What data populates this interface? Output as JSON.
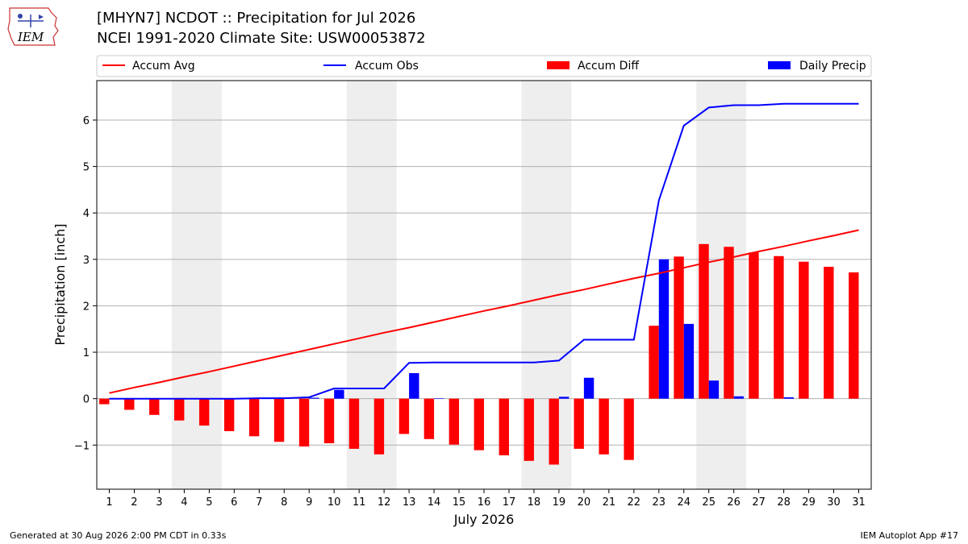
{
  "header": {
    "title_line1": "[MHYN7] NCDOT :: Precipitation for Jul 2026",
    "title_line2": "NCEI 1991-2020 Climate Site: USW00053872",
    "logo_text": "IEM"
  },
  "footer": {
    "generated": "Generated at 30 Aug 2026 2:00 PM CDT in 0.33s",
    "app": "IEM Autoplot App #17"
  },
  "colors": {
    "accum_avg": "#ff0000",
    "accum_obs": "#0000ff",
    "accum_diff": "#ff0000",
    "daily_precip": "#0000ff",
    "weekend": "#eeeeee"
  },
  "chart_data": {
    "type": "bar",
    "xlabel": "July 2026",
    "ylabel": "Precipitation [inch]",
    "ylim": [
      -1.95,
      6.85
    ],
    "yticks": [
      -1,
      0,
      1,
      2,
      3,
      4,
      5,
      6
    ],
    "xlim": [
      0.5,
      31.5
    ],
    "grid": true,
    "legend_placement": "top",
    "weekend_spans": [
      [
        3.5,
        5.5
      ],
      [
        10.5,
        12.5
      ],
      [
        17.5,
        19.5
      ],
      [
        24.5,
        26.5
      ]
    ],
    "days": [
      1,
      2,
      3,
      4,
      5,
      6,
      7,
      8,
      9,
      10,
      11,
      12,
      13,
      14,
      15,
      16,
      17,
      18,
      19,
      20,
      21,
      22,
      23,
      24,
      25,
      26,
      27,
      28,
      29,
      30,
      31
    ],
    "series": [
      {
        "name": "Accum Avg",
        "kind": "line",
        "values": [
          0.12,
          0.24,
          0.35,
          0.47,
          0.58,
          0.7,
          0.82,
          0.94,
          1.06,
          1.18,
          1.3,
          1.42,
          1.53,
          1.65,
          1.77,
          1.89,
          2.0,
          2.12,
          2.24,
          2.35,
          2.47,
          2.59,
          2.7,
          2.82,
          2.94,
          3.05,
          3.17,
          3.28,
          3.4,
          3.51,
          3.63
        ]
      },
      {
        "name": "Accum Obs",
        "kind": "line",
        "values": [
          0.0,
          0.0,
          0.0,
          0.0,
          0.0,
          0.0,
          0.01,
          0.01,
          0.03,
          0.22,
          0.22,
          0.22,
          0.77,
          0.78,
          0.78,
          0.78,
          0.78,
          0.78,
          0.82,
          1.27,
          1.27,
          1.27,
          4.27,
          5.88,
          6.27,
          6.32,
          6.32,
          6.35,
          6.35,
          6.35,
          6.35
        ]
      },
      {
        "name": "Accum Diff",
        "kind": "bar",
        "values": [
          -0.12,
          -0.24,
          -0.35,
          -0.47,
          -0.58,
          -0.7,
          -0.81,
          -0.93,
          -1.03,
          -0.96,
          -1.08,
          -1.2,
          -0.76,
          -0.87,
          -0.99,
          -1.11,
          -1.22,
          -1.34,
          -1.42,
          -1.08,
          -1.2,
          -1.32,
          1.57,
          3.06,
          3.33,
          3.27,
          3.15,
          3.07,
          2.95,
          2.84,
          2.72
        ]
      },
      {
        "name": "Daily Precip",
        "kind": "bar",
        "values": [
          0.0,
          0.0,
          0.0,
          0.0,
          0.0,
          0.0,
          0.01,
          0.0,
          0.02,
          0.19,
          0.0,
          0.0,
          0.55,
          0.01,
          0.0,
          0.0,
          0.0,
          0.0,
          0.04,
          0.45,
          0.0,
          0.0,
          3.0,
          1.61,
          0.39,
          0.05,
          0.0,
          0.03,
          0.0,
          0.0,
          0.0
        ]
      }
    ]
  }
}
